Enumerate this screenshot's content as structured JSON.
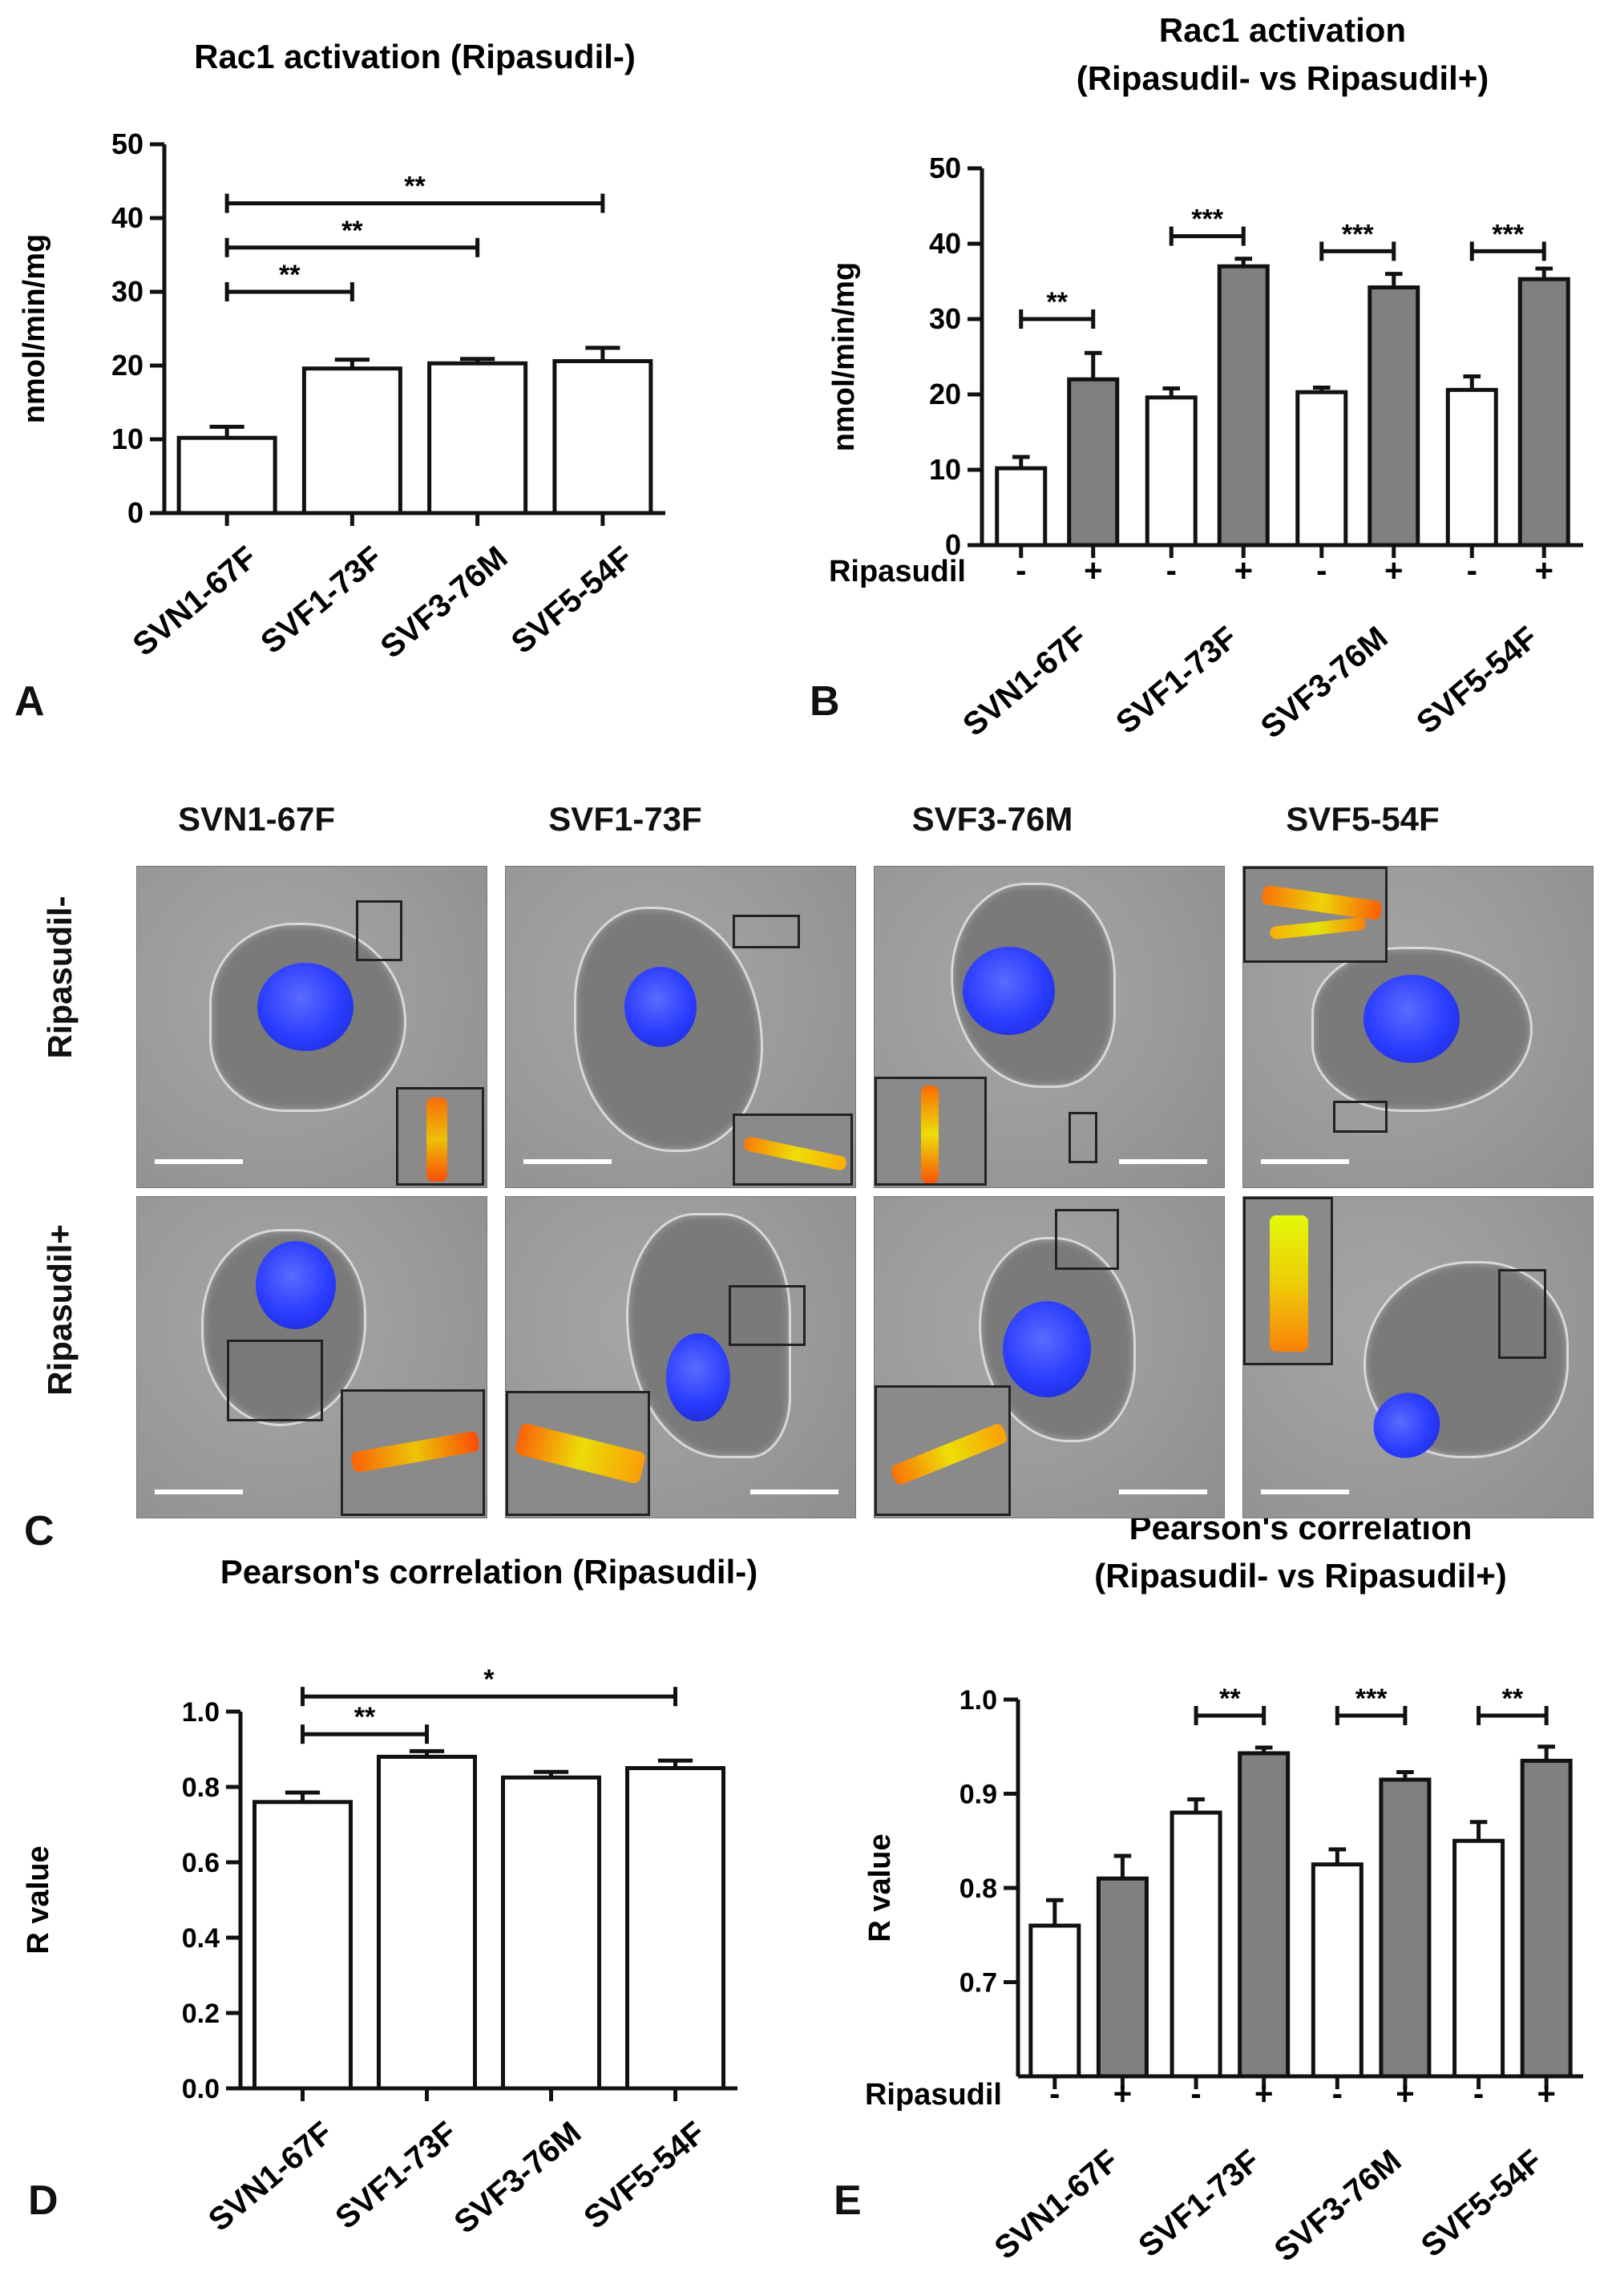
{
  "panel_letters": {
    "a": "A",
    "b": "B",
    "c": "C",
    "d": "D",
    "e": "E"
  },
  "microscopy": {
    "columns": [
      "SVN1-67F",
      "SVF1-73F",
      "SVF3-76M",
      "SVF5-54F"
    ],
    "rows": [
      "Ripasudil-",
      "Ripasudil+"
    ]
  },
  "colors": {
    "bar_open": "#ffffff",
    "bar_filled": "#808080",
    "axis": "#111111",
    "nucleus": "#2a3cff",
    "colocalization": "#f2c200"
  },
  "chart_data": [
    {
      "id": "A",
      "type": "bar",
      "title": "Rac1 activation (Ripasudil-)",
      "ylabel": "nmol/min/mg",
      "ylim": [
        0,
        50
      ],
      "yticks": [
        "0",
        "10",
        "20",
        "30",
        "40",
        "50"
      ],
      "categories": [
        "SVN1-67F",
        "SVF1-73F",
        "SVF3-76M",
        "SVF5-54F"
      ],
      "values": [
        10.2,
        19.6,
        20.3,
        20.6
      ],
      "errors": [
        1.5,
        1.2,
        0.6,
        1.8
      ],
      "significance": [
        {
          "label": "**",
          "from": "SVN1-67F",
          "to": "SVF1-73F",
          "y": 30
        },
        {
          "label": "**",
          "from": "SVN1-67F",
          "to": "SVF3-76M",
          "y": 36
        },
        {
          "label": "**",
          "from": "SVN1-67F",
          "to": "SVF5-54F",
          "y": 42
        }
      ]
    },
    {
      "id": "B",
      "type": "bar",
      "title": "Rac1 activation",
      "subtitle": "(Ripasudil- vs Ripasudil+)",
      "ylabel": "nmol/min/mg",
      "ylim": [
        0,
        50
      ],
      "yticks": [
        "0",
        "10",
        "20",
        "30",
        "40",
        "50"
      ],
      "categories": [
        "SVN1-67F",
        "SVF1-73F",
        "SVF3-76M",
        "SVF5-54F"
      ],
      "treatment_label": "Ripasudil",
      "treatment_signs": [
        "-",
        "+"
      ],
      "series": [
        {
          "name": "Ripasudil-",
          "values": [
            10.2,
            19.6,
            20.3,
            20.6
          ],
          "errors": [
            1.5,
            1.2,
            0.6,
            1.8
          ]
        },
        {
          "name": "Ripasudil+",
          "values": [
            22.0,
            37.0,
            34.2,
            35.3
          ],
          "errors": [
            3.5,
            1.0,
            1.8,
            1.4
          ]
        }
      ],
      "significance": [
        {
          "label": "**",
          "group": "SVN1-67F",
          "y": 30
        },
        {
          "label": "***",
          "group": "SVF1-73F",
          "y": 41
        },
        {
          "label": "***",
          "group": "SVF3-76M",
          "y": 39
        },
        {
          "label": "***",
          "group": "SVF5-54F",
          "y": 39
        }
      ]
    },
    {
      "id": "D",
      "type": "bar",
      "title": "Pearson's correlation (Ripasudil-)",
      "ylabel": "R value",
      "ylim": [
        0,
        1
      ],
      "yticks": [
        "0.0",
        "0.2",
        "0.4",
        "0.6",
        "0.8",
        "1.0"
      ],
      "categories": [
        "SVN1-67F",
        "SVF1-73F",
        "SVF3-76M",
        "SVF5-54F"
      ],
      "values": [
        0.76,
        0.88,
        0.825,
        0.85
      ],
      "errors": [
        0.025,
        0.015,
        0.015,
        0.02
      ],
      "significance": [
        {
          "label": "**",
          "from": "SVN1-67F",
          "to": "SVF1-73F",
          "y": 0.94
        },
        {
          "label": "*",
          "from": "SVN1-67F",
          "to": "SVF5-54F",
          "y": 1.04
        }
      ]
    },
    {
      "id": "E",
      "type": "bar",
      "title": "Pearson's correlation",
      "subtitle": "(Ripasudil- vs Ripasudil+)",
      "ylabel": "R value",
      "ylim": [
        0.6,
        1.0
      ],
      "yticks": [
        "0.7",
        "0.8",
        "0.9",
        "1.0"
      ],
      "categories": [
        "SVN1-67F",
        "SVF1-73F",
        "SVF3-76M",
        "SVF5-54F"
      ],
      "treatment_label": "Ripasudil",
      "treatment_signs": [
        "-",
        "+"
      ],
      "series": [
        {
          "name": "Ripasudil-",
          "values": [
            0.76,
            0.88,
            0.825,
            0.85
          ],
          "errors": [
            0.027,
            0.014,
            0.016,
            0.02
          ]
        },
        {
          "name": "Ripasudil+",
          "values": [
            0.81,
            0.943,
            0.915,
            0.935
          ],
          "errors": [
            0.024,
            0.006,
            0.008,
            0.015
          ]
        }
      ],
      "significance": [
        {
          "label": "**",
          "group": "SVF1-73F",
          "y": 0.983
        },
        {
          "label": "***",
          "group": "SVF3-76M",
          "y": 0.983
        },
        {
          "label": "**",
          "group": "SVF5-54F",
          "y": 0.983
        }
      ]
    }
  ]
}
